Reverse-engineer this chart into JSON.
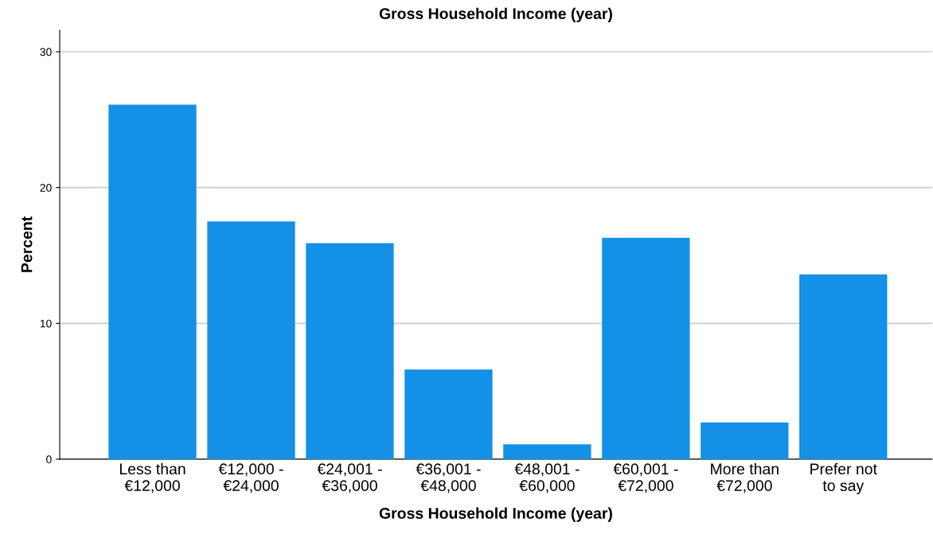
{
  "chart_data": {
    "type": "bar",
    "title": "Gross Household Income (year)",
    "xlabel": "Gross Household Income (year)",
    "ylabel": "Percent",
    "categories": [
      "Less than\n€12,000",
      "€12,000 -\n€24,000",
      "€24,001 -\n€36,000",
      "€36,001 -\n€48,000",
      "€48,001 -\n€60,000",
      "€60,001 -\n€72,000",
      "More than\n€72,000",
      "Prefer not\nto say"
    ],
    "values": [
      26.1,
      17.5,
      15.9,
      6.6,
      1.1,
      16.3,
      2.7,
      13.6
    ],
    "color": "#1490e6",
    "ylim": [
      0,
      31.6
    ],
    "yticks": [
      0,
      10,
      20,
      30
    ],
    "grid": "y"
  }
}
